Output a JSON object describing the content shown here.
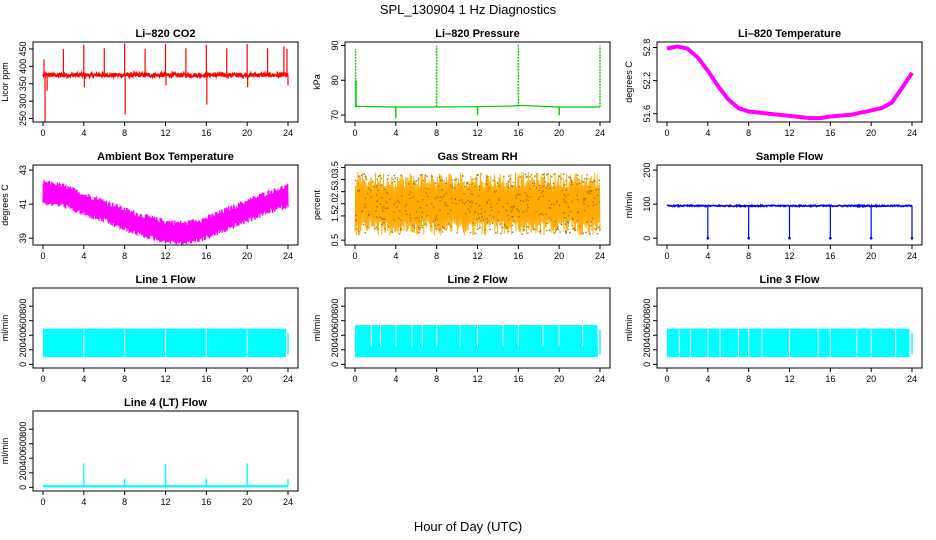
{
  "figure": {
    "title": "SPL_130904  1 Hz Diagnostics",
    "xlabel": "Hour of Day (UTC)"
  },
  "chart_data": [
    {
      "id": "co2",
      "type": "line",
      "title": "Li–820 CO2",
      "ylabel": "Licor ppm",
      "color": "#ff0000",
      "xlim": [
        0,
        24
      ],
      "ylim": [
        240,
        470
      ],
      "yticks": [
        250,
        300,
        350,
        400,
        450
      ],
      "xticks": [
        0,
        4,
        8,
        12,
        16,
        20,
        24
      ],
      "baseline": 375,
      "noise": 6,
      "spikes": [
        [
          0.1,
          420
        ],
        [
          0.2,
          240
        ],
        [
          0.4,
          330
        ],
        [
          2.0,
          450
        ],
        [
          4.0,
          462
        ],
        [
          4.05,
          340
        ],
        [
          6.0,
          452
        ],
        [
          8.0,
          466
        ],
        [
          8.05,
          262
        ],
        [
          10.0,
          450
        ],
        [
          12.0,
          464
        ],
        [
          12.05,
          345
        ],
        [
          14.0,
          452
        ],
        [
          16.0,
          462
        ],
        [
          16.05,
          290
        ],
        [
          18.0,
          452
        ],
        [
          20.0,
          464
        ],
        [
          20.05,
          340
        ],
        [
          22.0,
          452
        ],
        [
          23.6,
          458
        ],
        [
          23.9,
          450
        ],
        [
          24.0,
          345
        ]
      ]
    },
    {
      "id": "pressure",
      "type": "line",
      "title": "Li–820 Pressure",
      "ylabel": "kPa",
      "color": "#00cc00",
      "xlim": [
        0,
        24
      ],
      "ylim": [
        68,
        91
      ],
      "yticks": [
        70,
        80,
        90
      ],
      "xticks": [
        0,
        4,
        8,
        12,
        16,
        20,
        24
      ],
      "segments": [
        [
          0,
          72.5
        ],
        [
          4,
          72.3
        ],
        [
          8,
          72.3
        ],
        [
          12,
          72.4
        ],
        [
          15.5,
          72.6
        ],
        [
          16,
          72.8
        ],
        [
          20,
          72.3
        ],
        [
          24,
          72.3
        ]
      ],
      "spikes": [
        [
          0.05,
          89
        ],
        [
          0.1,
          80
        ],
        [
          4.0,
          69
        ],
        [
          8.0,
          90
        ],
        [
          12.0,
          70
        ],
        [
          16.0,
          90.5
        ],
        [
          20.0,
          70
        ],
        [
          24.0,
          90
        ]
      ]
    },
    {
      "id": "temperature",
      "type": "line",
      "title": "Li–820 Temperature",
      "ylabel": "degrees C",
      "color": "#ff00ff",
      "xlim": [
        0,
        24
      ],
      "ylim": [
        51.45,
        52.9
      ],
      "yticks": [
        51.6,
        52.2,
        52.8
      ],
      "yticklabels": [
        "51.6",
        "52.2",
        "52.8"
      ],
      "xticks": [
        0,
        4,
        8,
        12,
        16,
        20,
        24
      ],
      "x": [
        0,
        1,
        2,
        3,
        4,
        5,
        6,
        7,
        8,
        10,
        12,
        14,
        15,
        16,
        18,
        20,
        21,
        22,
        23,
        24
      ],
      "y": [
        52.78,
        52.82,
        52.78,
        52.62,
        52.38,
        52.1,
        51.86,
        51.7,
        51.64,
        51.6,
        51.56,
        51.52,
        51.52,
        51.55,
        51.58,
        51.66,
        51.7,
        51.8,
        52.06,
        52.34
      ]
    },
    {
      "id": "ambient",
      "type": "band",
      "title": "Ambient Box Temperature",
      "ylabel": "degrees C",
      "color": "#ff00ff",
      "xlim": [
        0,
        24
      ],
      "ylim": [
        38.6,
        43.3
      ],
      "yticks": [
        39,
        41,
        43
      ],
      "xticks": [
        0,
        4,
        8,
        12,
        16,
        20,
        24
      ],
      "x": [
        0,
        2,
        4,
        6,
        8,
        10,
        12,
        14,
        16,
        18,
        20,
        22,
        24
      ],
      "center": [
        41.7,
        41.5,
        41.0,
        40.6,
        40.1,
        39.7,
        39.4,
        39.3,
        39.6,
        40.1,
        40.6,
        41.1,
        41.5
      ],
      "halfwidth": 0.7
    },
    {
      "id": "rh",
      "type": "band",
      "title": "Gas Stream RH",
      "ylabel": "percent",
      "color": "#ffaa00",
      "xlim": [
        0,
        24
      ],
      "ylim": [
        0.3,
        3.6
      ],
      "yticks": [
        0.5,
        1.5,
        2.0,
        2.5,
        3.0,
        3.5
      ],
      "yticklabels": [
        "0.5",
        "1.5",
        "2.0",
        "2.5",
        "3.0",
        "3.5"
      ],
      "xticks": [
        0,
        4,
        8,
        12,
        16,
        20,
        24
      ],
      "x": [
        0,
        24
      ],
      "center": [
        2.0,
        2.0
      ],
      "halfwidth": 1.25
    },
    {
      "id": "sample",
      "type": "line",
      "title": "Sample Flow",
      "ylabel": "ml/min",
      "color": "#0000ff",
      "xlim": [
        0,
        24
      ],
      "ylim": [
        -20,
        215
      ],
      "yticks": [
        0,
        100,
        200
      ],
      "xticks": [
        0,
        4,
        8,
        12,
        16,
        20,
        24
      ],
      "baseline": 95,
      "drops": [
        4,
        8,
        12,
        16,
        20,
        24
      ],
      "drop_level": 0
    },
    {
      "id": "line1",
      "type": "flow",
      "title": "Line 1 Flow",
      "ylabel": "ml/min",
      "color": "#00ffff",
      "xlim": [
        0,
        24
      ],
      "ylim": [
        -50,
        1050
      ],
      "yticks": [
        0,
        200,
        400,
        600,
        800
      ],
      "xticks": [
        0,
        4,
        8,
        12,
        16,
        20,
        24
      ],
      "low": 100,
      "high": 490,
      "gaps": [
        4,
        8,
        12,
        16,
        20,
        24
      ],
      "gap_level": 100
    },
    {
      "id": "line2",
      "type": "flow",
      "title": "Line 2 Flow",
      "ylabel": "ml/min",
      "color": "#00ffff",
      "xlim": [
        0,
        24
      ],
      "ylim": [
        -50,
        1050
      ],
      "yticks": [
        0,
        200,
        400,
        600,
        800
      ],
      "xticks": [
        0,
        4,
        8,
        12,
        16,
        20,
        24
      ],
      "low": 100,
      "high": 540,
      "gaps": [
        1.6,
        2.5,
        4,
        5.6,
        6.6,
        8,
        10.3,
        12,
        14.5,
        16,
        18.4,
        20,
        22.3,
        23.8
      ],
      "gap_level": 250
    },
    {
      "id": "line3",
      "type": "flow",
      "title": "Line 3 Flow",
      "ylabel": "ml/min",
      "color": "#00ffff",
      "xlim": [
        0,
        24
      ],
      "ylim": [
        -50,
        1050
      ],
      "yticks": [
        0,
        200,
        400,
        600,
        800
      ],
      "xticks": [
        0,
        4,
        8,
        12,
        16,
        20,
        24
      ],
      "low": 100,
      "high": 490,
      "gaps": [
        1.2,
        2.3,
        4,
        5.2,
        7.0,
        8,
        9.3,
        12,
        14.8,
        16,
        18.6,
        20,
        22.4,
        23.8
      ],
      "gap_level": 20
    },
    {
      "id": "line4",
      "type": "line",
      "title": "Line 4 (LT) Flow",
      "ylabel": "ml/min",
      "color": "#00ffff",
      "xlim": [
        0,
        24
      ],
      "ylim": [
        -50,
        1050
      ],
      "yticks": [
        0,
        200,
        400,
        600,
        800
      ],
      "xticks": [
        0,
        4,
        8,
        12,
        16,
        20,
        24
      ],
      "baseline": 15,
      "spikes": [
        [
          4,
          330
        ],
        [
          8,
          120
        ],
        [
          12,
          320
        ],
        [
          16,
          120
        ],
        [
          20,
          330
        ],
        [
          24,
          120
        ]
      ]
    }
  ]
}
